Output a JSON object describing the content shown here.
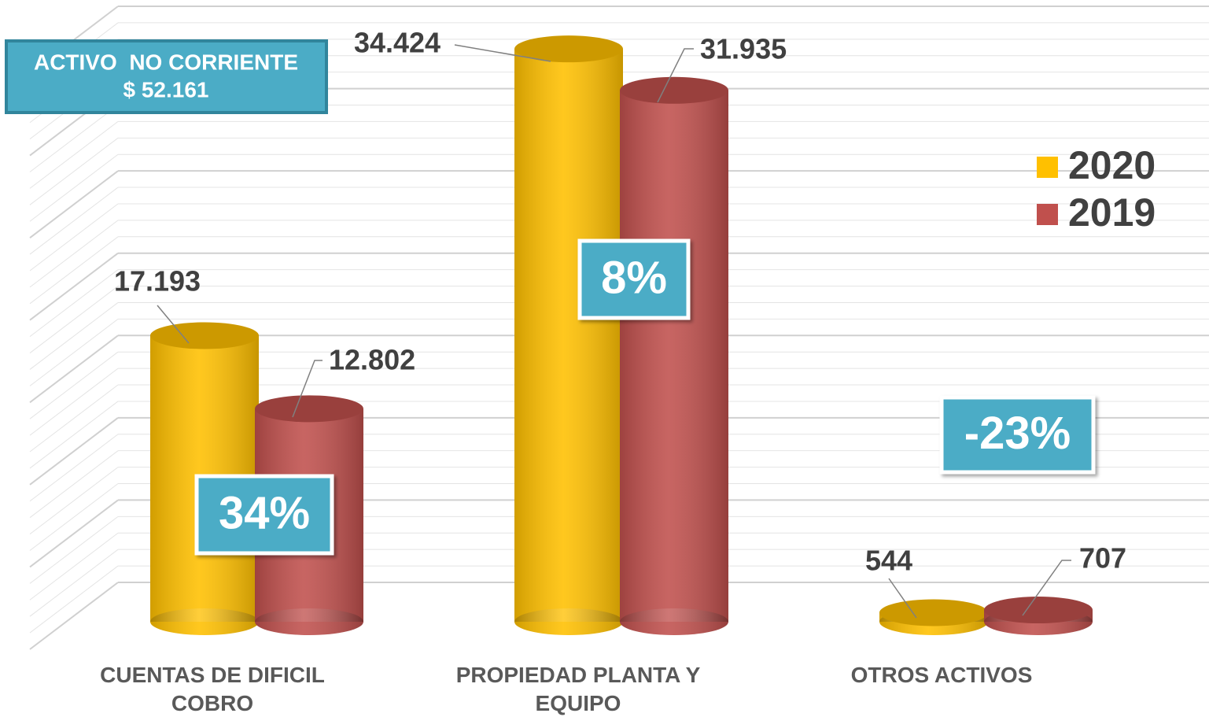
{
  "chart_data": {
    "type": "bar3d",
    "info_box": [
      "ACTIVO  NO CORRIENTE",
      "$ 52.161"
    ],
    "categories": [
      "CUENTAS DE DIFICIL COBRO",
      "PROPIEDAD PLANTA Y EQUIPO",
      "OTROS ACTIVOS"
    ],
    "series": [
      {
        "name": "2020",
        "color": "#ffc000",
        "values": [
          17193,
          34424,
          544
        ],
        "value_labels": [
          "17.193",
          "34.424",
          "544"
        ]
      },
      {
        "name": "2019",
        "color": "#c0504d",
        "values": [
          12802,
          31935,
          707
        ],
        "value_labels": [
          "12.802",
          "31.935",
          "707"
        ]
      }
    ],
    "annotations": [
      "34%",
      "8%",
      "-23%"
    ],
    "ylim": [
      0,
      35000
    ],
    "yticks": [
      0,
      5000,
      10000,
      15000,
      20000,
      25000,
      30000,
      35000
    ],
    "grid": true,
    "legend": "right"
  }
}
